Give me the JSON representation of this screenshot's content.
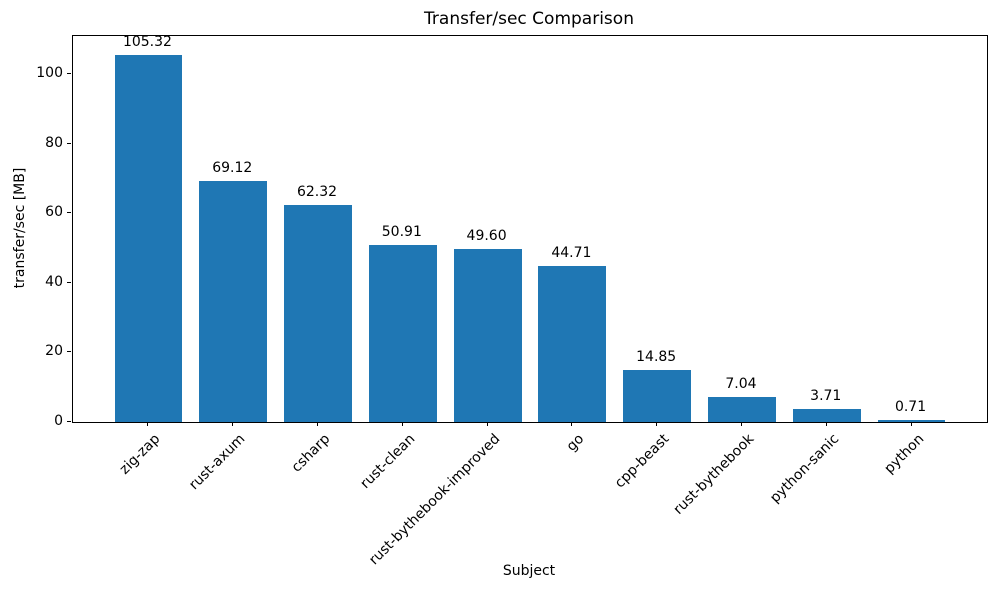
{
  "chart_data": {
    "type": "bar",
    "title": "Transfer/sec Comparison",
    "xlabel": "Subject",
    "ylabel": "transfer/sec [MB]",
    "categories": [
      "zig-zap",
      "rust-axum",
      "csharp",
      "rust-clean",
      "rust-bythebook-improved",
      "go",
      "cpp-beast",
      "rust-bythebook",
      "python-sanic",
      "python"
    ],
    "values": [
      105.32,
      69.12,
      62.32,
      50.91,
      49.6,
      44.71,
      14.85,
      7.04,
      3.71,
      0.71
    ],
    "value_labels": [
      "105.32",
      "69.12",
      "62.32",
      "50.91",
      "49.60",
      "44.71",
      "14.85",
      "7.04",
      "3.71",
      "0.71"
    ],
    "yticks": [
      0,
      20,
      40,
      60,
      80,
      100
    ],
    "ylim": [
      0,
      110.9
    ],
    "bar_color": "#1f77b4",
    "axis_color": "#000000",
    "grid": false,
    "legend_position": "none"
  }
}
